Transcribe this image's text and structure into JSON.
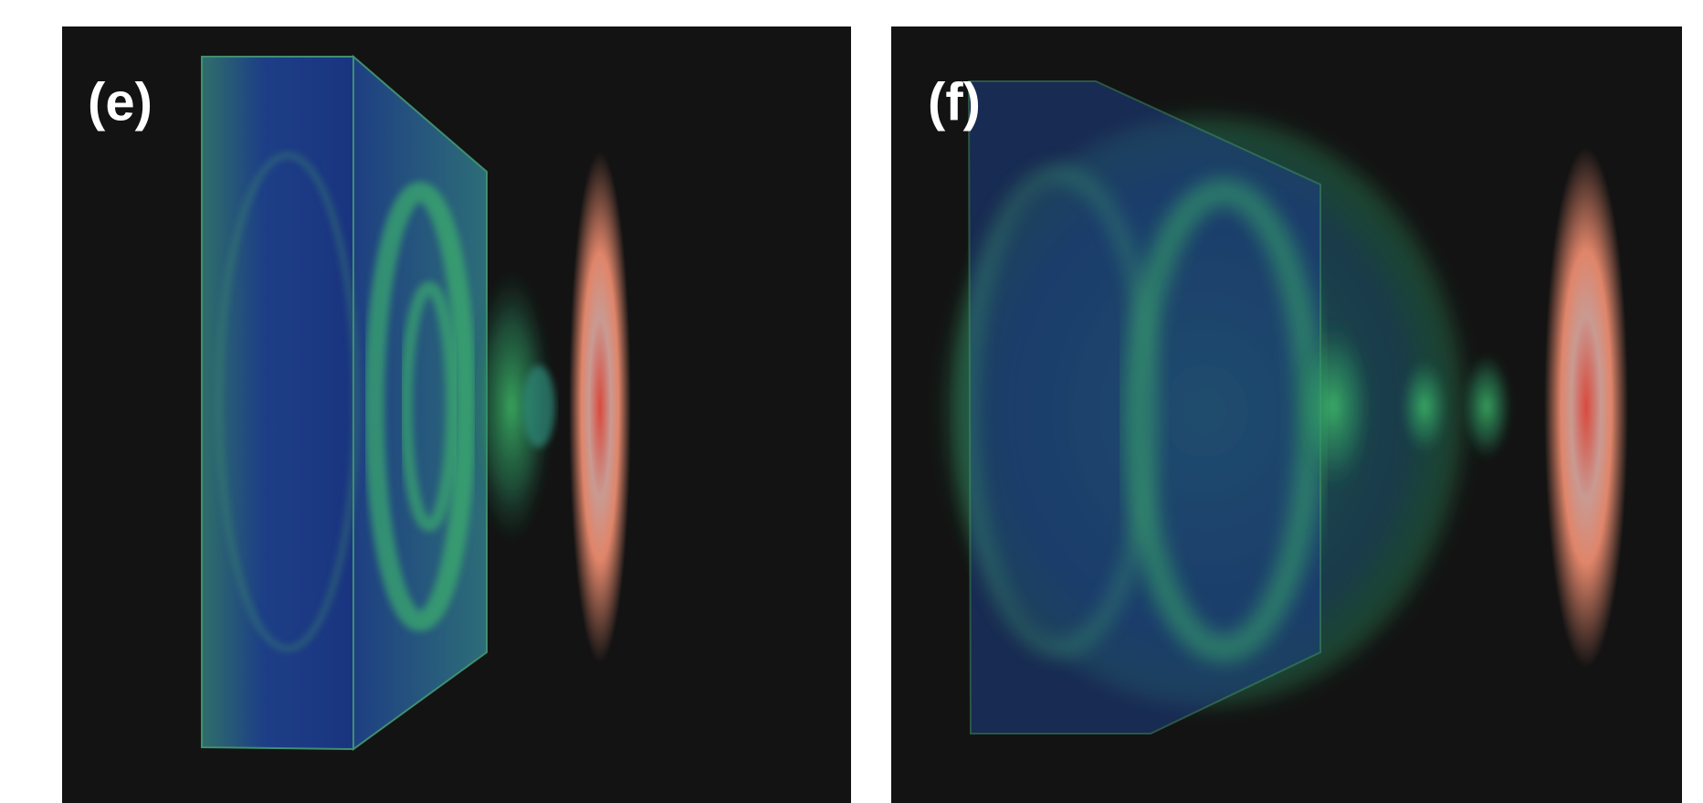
{
  "panels": [
    {
      "label": "(e)"
    },
    {
      "label": "(f)"
    }
  ]
}
